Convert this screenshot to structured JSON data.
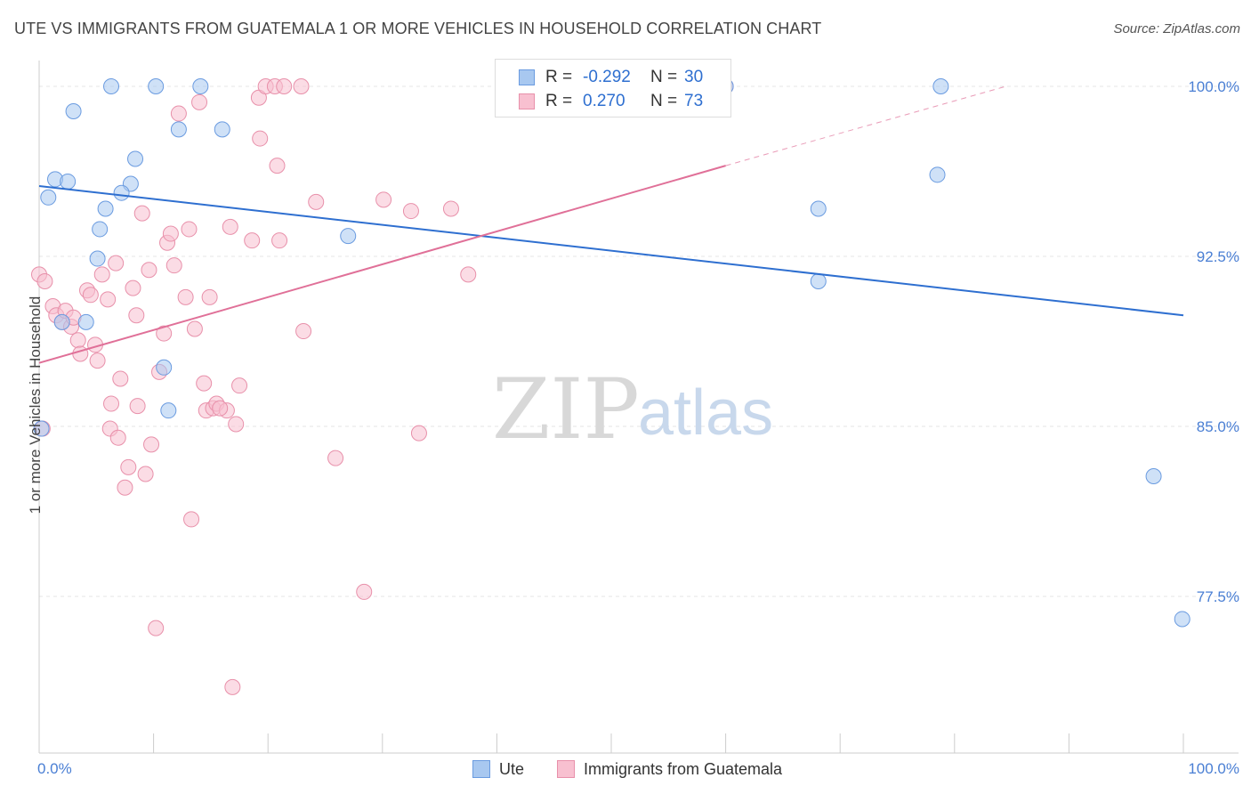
{
  "title": "UTE VS IMMIGRANTS FROM GUATEMALA 1 OR MORE VEHICLES IN HOUSEHOLD CORRELATION CHART",
  "source": "Source: ZipAtlas.com",
  "watermark": {
    "zip": "ZIP",
    "atlas": "atlas"
  },
  "legend": {
    "rows": [
      {
        "r_label": "R =",
        "r_value": "-0.292",
        "n_label": "N =",
        "n_value": "30",
        "color": "#a8c8f0",
        "border": "#6a9be0"
      },
      {
        "r_label": "R =",
        "r_value": "0.270",
        "n_label": "N =",
        "n_value": "73",
        "color": "#f8c0d0",
        "border": "#e890aa"
      }
    ]
  },
  "bottom_legend": [
    {
      "label": "Ute",
      "color": "#a8c8f0",
      "border": "#6a9be0"
    },
    {
      "label": "Immigrants from Guatemala",
      "color": "#f8c0d0",
      "border": "#e890aa"
    }
  ],
  "chart_data": {
    "type": "scatter",
    "title": "UTE VS IMMIGRANTS FROM GUATEMALA 1 OR MORE VEHICLES IN HOUSEHOLD CORRELATION CHART",
    "xlabel": "",
    "ylabel": "1 or more Vehicles in Household",
    "xlim": [
      0,
      100
    ],
    "ylim": [
      72.5,
      101.0
    ],
    "x_tick_labels": [
      "0.0%",
      "100.0%"
    ],
    "y_ticks": [
      77.5,
      85.0,
      92.5,
      100.0
    ],
    "y_tick_labels": [
      "77.5%",
      "85.0%",
      "92.5%",
      "100.0%"
    ],
    "grid": true,
    "series": [
      {
        "name": "Ute",
        "color": "#a8c8f0",
        "stroke": "#6a9be0",
        "trend_color": "#2e6fd0",
        "trend": {
          "x0": 0,
          "y0": 95.6,
          "x1": 100,
          "y1": 89.9
        },
        "points": [
          [
            3.0,
            98.9
          ],
          [
            6.3,
            100.0
          ],
          [
            10.2,
            100.0
          ],
          [
            14.1,
            100.0
          ],
          [
            0.8,
            95.1
          ],
          [
            1.4,
            95.9
          ],
          [
            2.5,
            95.8
          ],
          [
            8.0,
            95.7
          ],
          [
            7.2,
            95.3
          ],
          [
            5.8,
            94.6
          ],
          [
            8.4,
            96.8
          ],
          [
            12.2,
            98.1
          ],
          [
            16.0,
            98.1
          ],
          [
            5.3,
            93.7
          ],
          [
            5.1,
            92.4
          ],
          [
            2.0,
            89.6
          ],
          [
            4.1,
            89.6
          ],
          [
            10.9,
            87.6
          ],
          [
            11.3,
            85.7
          ],
          [
            0.2,
            84.9
          ],
          [
            27.0,
            93.4
          ],
          [
            57.2,
            100.0
          ],
          [
            78.8,
            100.0
          ],
          [
            68.1,
            94.6
          ],
          [
            78.5,
            96.1
          ],
          [
            68.1,
            91.4
          ],
          [
            97.4,
            82.8
          ],
          [
            99.9,
            76.5
          ],
          [
            60.0,
            100.0
          ],
          [
            54.8,
            100.0
          ]
        ]
      },
      {
        "name": "Immigrants from Guatemala",
        "color": "#f8c0d0",
        "stroke": "#e890aa",
        "trend_color": "#e07098",
        "trend": {
          "x0": 0,
          "y0": 87.8,
          "x1": 60,
          "y1": 96.5
        },
        "trend_dashed": {
          "x0": 60,
          "y0": 96.5,
          "x1": 84.5,
          "y1": 100.0
        },
        "points": [
          [
            0.0,
            91.7
          ],
          [
            0.5,
            91.4
          ],
          [
            0.3,
            84.9
          ],
          [
            1.2,
            90.3
          ],
          [
            1.5,
            89.9
          ],
          [
            2.0,
            89.6
          ],
          [
            2.3,
            90.1
          ],
          [
            2.8,
            89.4
          ],
          [
            3.0,
            89.8
          ],
          [
            3.4,
            88.8
          ],
          [
            3.6,
            88.2
          ],
          [
            4.2,
            91.0
          ],
          [
            4.5,
            90.8
          ],
          [
            4.9,
            88.6
          ],
          [
            5.1,
            87.9
          ],
          [
            5.5,
            91.7
          ],
          [
            6.0,
            90.6
          ],
          [
            6.3,
            86.0
          ],
          [
            6.2,
            84.9
          ],
          [
            6.7,
            92.2
          ],
          [
            6.9,
            84.5
          ],
          [
            7.1,
            87.1
          ],
          [
            7.5,
            82.3
          ],
          [
            7.8,
            83.2
          ],
          [
            8.2,
            91.1
          ],
          [
            8.5,
            89.9
          ],
          [
            8.6,
            85.9
          ],
          [
            9.0,
            94.4
          ],
          [
            9.3,
            82.9
          ],
          [
            9.6,
            91.9
          ],
          [
            9.8,
            84.2
          ],
          [
            10.2,
            76.1
          ],
          [
            10.5,
            87.4
          ],
          [
            10.9,
            89.1
          ],
          [
            11.2,
            93.1
          ],
          [
            11.5,
            93.5
          ],
          [
            11.8,
            92.1
          ],
          [
            12.2,
            98.8
          ],
          [
            12.8,
            90.7
          ],
          [
            13.1,
            93.7
          ],
          [
            13.3,
            80.9
          ],
          [
            13.6,
            89.3
          ],
          [
            14.0,
            99.3
          ],
          [
            14.4,
            86.9
          ],
          [
            14.6,
            85.7
          ],
          [
            14.9,
            90.7
          ],
          [
            15.2,
            85.8
          ],
          [
            15.5,
            86.0
          ],
          [
            16.4,
            85.7
          ],
          [
            16.7,
            93.8
          ],
          [
            16.9,
            73.5
          ],
          [
            17.2,
            85.1
          ],
          [
            17.5,
            86.8
          ],
          [
            18.6,
            93.2
          ],
          [
            19.2,
            99.5
          ],
          [
            19.3,
            97.7
          ],
          [
            19.8,
            100.0
          ],
          [
            20.6,
            100.0
          ],
          [
            20.8,
            96.5
          ],
          [
            21.0,
            93.2
          ],
          [
            21.4,
            100.0
          ],
          [
            22.9,
            100.0
          ],
          [
            23.1,
            89.2
          ],
          [
            24.2,
            94.9
          ],
          [
            25.9,
            83.6
          ],
          [
            28.4,
            77.7
          ],
          [
            30.1,
            95.0
          ],
          [
            32.5,
            94.5
          ],
          [
            33.2,
            84.7
          ],
          [
            36.0,
            94.6
          ],
          [
            37.5,
            91.7
          ],
          [
            60.0,
            100.0
          ],
          [
            15.8,
            85.8
          ]
        ]
      }
    ]
  }
}
